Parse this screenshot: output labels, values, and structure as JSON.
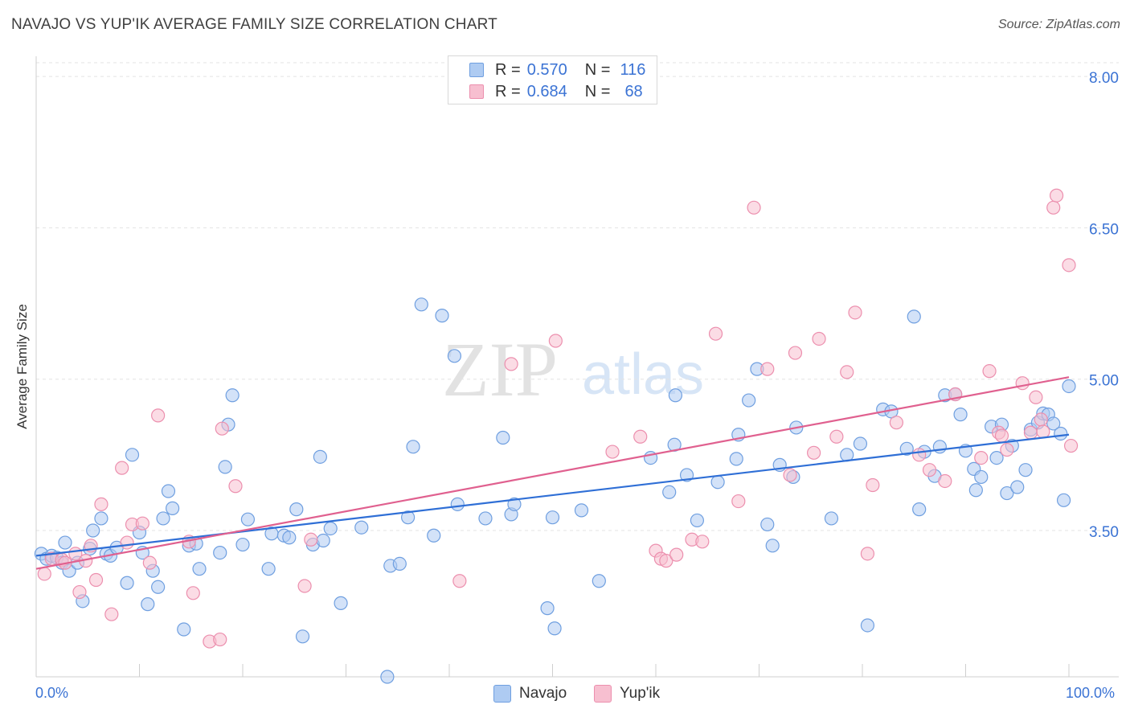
{
  "header": {
    "title": "NAVAJO VS YUP'IK AVERAGE FAMILY SIZE CORRELATION CHART",
    "source": "Source: ZipAtlas.com"
  },
  "watermark": {
    "zip": "ZIP",
    "atlas": "atlas"
  },
  "legend": {
    "rows": [
      {
        "r_label": "R =",
        "r_value": "0.570",
        "n_label": "N =",
        "n_value": "116"
      },
      {
        "r_label": "R =",
        "r_value": "0.684",
        "n_label": "N =",
        "n_value": "68"
      }
    ]
  },
  "bottom_legend": {
    "navajo": "Navajo",
    "yupik": "Yup'ik"
  },
  "colors": {
    "navajo_fill": "#aecbf2",
    "navajo_stroke": "#6f9fe0",
    "navajo_line": "#2f6fd6",
    "yupik_fill": "#f7bfd0",
    "yupik_stroke": "#ec8fae",
    "yupik_line": "#e0608f",
    "tick_label": "#3b73d4",
    "grid": "#e3e3e3"
  },
  "chart_data": {
    "type": "scatter",
    "title": "NAVAJO VS YUP'IK AVERAGE FAMILY SIZE CORRELATION CHART",
    "ylabel": "Average Family Size",
    "xlabel": "",
    "xlim": [
      0,
      100
    ],
    "ylim": [
      2.05,
      8.2
    ],
    "x_tick_labels": [
      "0.0%",
      "100.0%"
    ],
    "y_ticks": [
      3.5,
      5.0,
      6.5,
      8.0
    ],
    "y_tick_labels": [
      "3.50",
      "5.00",
      "6.50",
      "8.00"
    ],
    "grid": "horizontal dashed",
    "series": [
      {
        "name": "Navajo",
        "trend": {
          "x0": 0,
          "y0": 3.25,
          "x1": 100,
          "y1": 4.45
        },
        "points": [
          [
            0.5,
            3.27
          ],
          [
            1.0,
            3.22
          ],
          [
            1.5,
            3.25
          ],
          [
            2.0,
            3.23
          ],
          [
            2.5,
            3.18
          ],
          [
            2.8,
            3.38
          ],
          [
            3.2,
            3.1
          ],
          [
            4.0,
            3.18
          ],
          [
            4.5,
            2.8
          ],
          [
            5.2,
            3.32
          ],
          [
            5.5,
            3.5
          ],
          [
            6.3,
            3.62
          ],
          [
            6.8,
            3.27
          ],
          [
            7.2,
            3.25
          ],
          [
            7.8,
            3.33
          ],
          [
            8.8,
            2.98
          ],
          [
            9.3,
            4.25
          ],
          [
            10.0,
            3.48
          ],
          [
            10.3,
            3.28
          ],
          [
            10.8,
            2.77
          ],
          [
            11.3,
            3.1
          ],
          [
            11.8,
            2.94
          ],
          [
            12.3,
            3.62
          ],
          [
            12.8,
            3.89
          ],
          [
            13.2,
            3.72
          ],
          [
            14.3,
            2.52
          ],
          [
            14.8,
            3.35
          ],
          [
            15.5,
            3.37
          ],
          [
            15.8,
            3.12
          ],
          [
            17.8,
            3.28
          ],
          [
            18.6,
            4.55
          ],
          [
            19.0,
            4.84
          ],
          [
            18.3,
            4.13
          ],
          [
            20.0,
            3.36
          ],
          [
            20.5,
            3.61
          ],
          [
            22.5,
            3.12
          ],
          [
            22.8,
            3.47
          ],
          [
            24.0,
            3.45
          ],
          [
            24.5,
            3.43
          ],
          [
            25.2,
            3.71
          ],
          [
            25.8,
            2.45
          ],
          [
            26.8,
            3.36
          ],
          [
            27.5,
            4.23
          ],
          [
            27.8,
            3.4
          ],
          [
            28.5,
            3.52
          ],
          [
            29.5,
            2.78
          ],
          [
            31.5,
            3.53
          ],
          [
            34.3,
            3.15
          ],
          [
            35.2,
            3.17
          ],
          [
            34.0,
            2.05
          ],
          [
            36.0,
            3.63
          ],
          [
            36.5,
            4.33
          ],
          [
            37.3,
            5.74
          ],
          [
            38.5,
            3.45
          ],
          [
            39.3,
            5.63
          ],
          [
            40.5,
            5.23
          ],
          [
            40.8,
            3.76
          ],
          [
            43.5,
            3.62
          ],
          [
            45.2,
            4.42
          ],
          [
            46.0,
            3.66
          ],
          [
            46.3,
            3.76
          ],
          [
            49.5,
            2.73
          ],
          [
            50.0,
            3.63
          ],
          [
            50.2,
            2.53
          ],
          [
            52.8,
            3.7
          ],
          [
            54.5,
            3.0
          ],
          [
            61.3,
            3.88
          ],
          [
            61.9,
            4.84
          ],
          [
            61.8,
            4.35
          ],
          [
            59.5,
            4.22
          ],
          [
            63.0,
            4.05
          ],
          [
            64.0,
            3.6
          ],
          [
            66.0,
            3.98
          ],
          [
            67.8,
            4.21
          ],
          [
            68.0,
            4.45
          ],
          [
            69.0,
            4.79
          ],
          [
            69.8,
            5.1
          ],
          [
            70.8,
            3.56
          ],
          [
            71.3,
            3.35
          ],
          [
            72.0,
            4.15
          ],
          [
            73.3,
            4.03
          ],
          [
            73.6,
            4.52
          ],
          [
            77.0,
            3.62
          ],
          [
            78.5,
            4.25
          ],
          [
            79.8,
            4.36
          ],
          [
            80.5,
            2.56
          ],
          [
            82.0,
            4.7
          ],
          [
            82.8,
            4.68
          ],
          [
            84.3,
            4.31
          ],
          [
            85.0,
            5.62
          ],
          [
            85.5,
            3.71
          ],
          [
            86.0,
            4.28
          ],
          [
            87.0,
            4.04
          ],
          [
            87.5,
            4.33
          ],
          [
            88.0,
            4.84
          ],
          [
            89.0,
            4.85
          ],
          [
            89.5,
            4.65
          ],
          [
            90.0,
            4.29
          ],
          [
            90.8,
            4.11
          ],
          [
            91.0,
            3.9
          ],
          [
            91.5,
            4.03
          ],
          [
            92.5,
            4.53
          ],
          [
            93.0,
            4.22
          ],
          [
            93.5,
            4.55
          ],
          [
            94.0,
            3.87
          ],
          [
            94.5,
            4.34
          ],
          [
            95.0,
            3.93
          ],
          [
            95.8,
            4.1
          ],
          [
            96.3,
            4.5
          ],
          [
            97.0,
            4.57
          ],
          [
            97.5,
            4.66
          ],
          [
            98.0,
            4.65
          ],
          [
            98.5,
            4.56
          ],
          [
            99.2,
            4.46
          ],
          [
            99.5,
            3.8
          ],
          [
            100.0,
            4.93
          ]
        ]
      },
      {
        "name": "Yup'ik",
        "trend": {
          "x0": 0,
          "y0": 3.12,
          "x1": 100,
          "y1": 5.02
        },
        "points": [
          [
            0.8,
            3.07
          ],
          [
            1.5,
            3.22
          ],
          [
            2.5,
            3.21
          ],
          [
            2.8,
            3.18
          ],
          [
            3.8,
            3.27
          ],
          [
            4.2,
            2.89
          ],
          [
            4.8,
            3.2
          ],
          [
            5.3,
            3.35
          ],
          [
            5.8,
            3.01
          ],
          [
            6.3,
            3.76
          ],
          [
            7.3,
            2.67
          ],
          [
            8.3,
            4.12
          ],
          [
            8.8,
            3.38
          ],
          [
            9.3,
            3.56
          ],
          [
            10.3,
            3.57
          ],
          [
            11.0,
            3.18
          ],
          [
            11.8,
            4.64
          ],
          [
            14.8,
            3.39
          ],
          [
            15.2,
            2.88
          ],
          [
            16.8,
            2.4
          ],
          [
            17.8,
            2.42
          ],
          [
            18.0,
            4.51
          ],
          [
            19.3,
            3.94
          ],
          [
            26.0,
            2.95
          ],
          [
            26.6,
            3.41
          ],
          [
            41.0,
            3.0
          ],
          [
            46.0,
            5.15
          ],
          [
            50.3,
            5.38
          ],
          [
            55.8,
            4.28
          ],
          [
            58.5,
            4.43
          ],
          [
            60.0,
            3.3
          ],
          [
            60.5,
            3.22
          ],
          [
            61.0,
            3.2
          ],
          [
            62.0,
            3.26
          ],
          [
            63.5,
            3.41
          ],
          [
            64.5,
            3.39
          ],
          [
            65.8,
            5.45
          ],
          [
            68.0,
            3.79
          ],
          [
            69.5,
            6.7
          ],
          [
            70.8,
            5.1
          ],
          [
            73.0,
            4.05
          ],
          [
            73.5,
            5.26
          ],
          [
            75.3,
            4.27
          ],
          [
            75.8,
            5.4
          ],
          [
            77.5,
            4.43
          ],
          [
            78.5,
            5.07
          ],
          [
            79.3,
            5.66
          ],
          [
            80.5,
            3.27
          ],
          [
            81.0,
            3.95
          ],
          [
            83.3,
            4.57
          ],
          [
            85.5,
            4.25
          ],
          [
            86.5,
            4.1
          ],
          [
            88.0,
            3.99
          ],
          [
            89.0,
            4.85
          ],
          [
            91.5,
            4.22
          ],
          [
            92.3,
            5.08
          ],
          [
            93.2,
            4.47
          ],
          [
            93.5,
            4.44
          ],
          [
            94.0,
            4.3
          ],
          [
            95.5,
            4.96
          ],
          [
            96.3,
            4.47
          ],
          [
            96.8,
            4.82
          ],
          [
            97.3,
            4.6
          ],
          [
            97.5,
            4.48
          ],
          [
            98.5,
            6.7
          ],
          [
            98.8,
            6.82
          ],
          [
            100.0,
            6.13
          ],
          [
            100.2,
            4.34
          ]
        ]
      }
    ]
  }
}
